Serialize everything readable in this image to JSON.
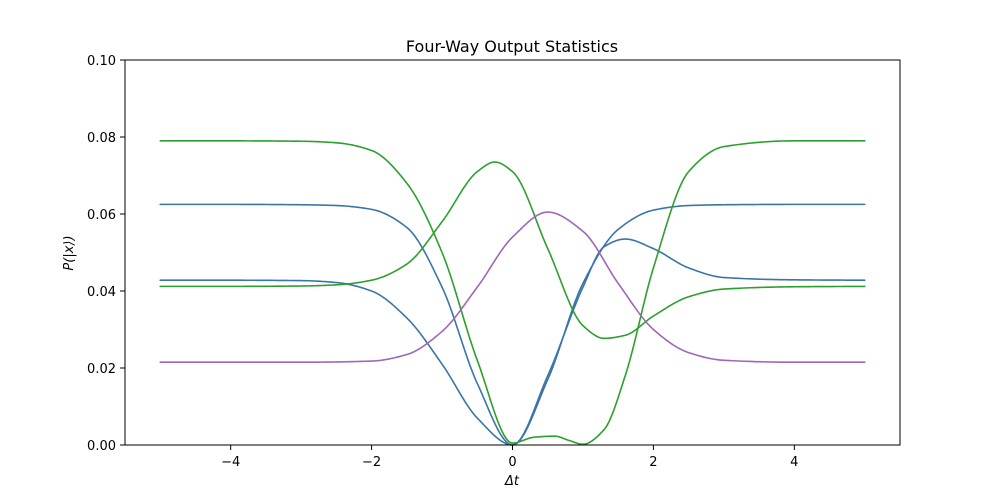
{
  "chart_data": {
    "type": "line",
    "title": "Four-Way Output Statistics",
    "xlabel": "Δt",
    "ylabel": "P(|x⟩)",
    "xlim": [
      -5.5,
      5.5
    ],
    "ylim": [
      0.0,
      0.1
    ],
    "xticks": [
      -4,
      -2,
      0,
      2,
      4
    ],
    "yticks": [
      0.0,
      0.02,
      0.04,
      0.06,
      0.08,
      0.1
    ],
    "xtick_labels": [
      "−4",
      "−2",
      "0",
      "2",
      "4"
    ],
    "ytick_labels": [
      "0.00",
      "0.02",
      "0.04",
      "0.06",
      "0.08",
      "0.10"
    ],
    "grid": false,
    "colors": {
      "blue": "#3a75a8",
      "green": "#2ca02c",
      "purple": "#a066b8"
    },
    "series": [
      {
        "color": "#3a75a8",
        "x": [
          -5,
          -4,
          -3,
          -2.5,
          -2,
          -1.5,
          -1,
          -0.5,
          0,
          0.5,
          1,
          1.5,
          2,
          2.5,
          3,
          4,
          5
        ],
        "y": [
          0.0625,
          0.0625,
          0.0624,
          0.0622,
          0.0612,
          0.0565,
          0.041,
          0.016,
          0.0,
          0.017,
          0.042,
          0.056,
          0.061,
          0.0622,
          0.0624,
          0.0625,
          0.0625
        ]
      },
      {
        "color": "#3a75a8",
        "x": [
          -5,
          -4,
          -3,
          -2.5,
          -2,
          -1.5,
          -1,
          -0.5,
          0,
          0.5,
          1,
          1.3,
          1.6,
          2,
          2.5,
          3,
          4,
          5
        ],
        "y": [
          0.0428,
          0.0428,
          0.0427,
          0.0422,
          0.04,
          0.033,
          0.021,
          0.007,
          0.0,
          0.018,
          0.041,
          0.0515,
          0.0535,
          0.051,
          0.046,
          0.0435,
          0.0429,
          0.0428
        ]
      },
      {
        "color": "#2ca02c",
        "x": [
          -5,
          -4,
          -3,
          -2.5,
          -2,
          -1.5,
          -1,
          -0.5,
          0,
          0.3,
          0.6,
          0.8,
          1,
          1.3,
          1.6,
          2,
          2.5,
          3,
          4,
          5
        ],
        "y": [
          0.079,
          0.079,
          0.0789,
          0.0785,
          0.0765,
          0.068,
          0.05,
          0.022,
          0.0005,
          0.002,
          0.0023,
          0.0012,
          0.0002,
          0.004,
          0.018,
          0.046,
          0.071,
          0.0775,
          0.079,
          0.079
        ]
      },
      {
        "color": "#2ca02c",
        "x": [
          -5,
          -4,
          -3,
          -2.5,
          -2,
          -1.5,
          -1,
          -0.5,
          -0.25,
          0,
          0.5,
          1,
          1.3,
          1.6,
          2,
          2.5,
          3,
          4,
          5
        ],
        "y": [
          0.0412,
          0.0412,
          0.0413,
          0.0416,
          0.0428,
          0.047,
          0.058,
          0.071,
          0.0735,
          0.071,
          0.051,
          0.031,
          0.0277,
          0.0285,
          0.0335,
          0.0385,
          0.0405,
          0.0411,
          0.0412
        ]
      },
      {
        "color": "#a066b8",
        "x": [
          -5,
          -4,
          -3,
          -2,
          -1.5,
          -1,
          -0.5,
          0,
          0.5,
          1,
          1.5,
          2,
          2.5,
          3,
          4,
          5
        ],
        "y": [
          0.0215,
          0.0215,
          0.0215,
          0.0218,
          0.0235,
          0.0295,
          0.041,
          0.054,
          0.0605,
          0.0555,
          0.042,
          0.03,
          0.024,
          0.022,
          0.0215,
          0.0215
        ]
      }
    ]
  }
}
